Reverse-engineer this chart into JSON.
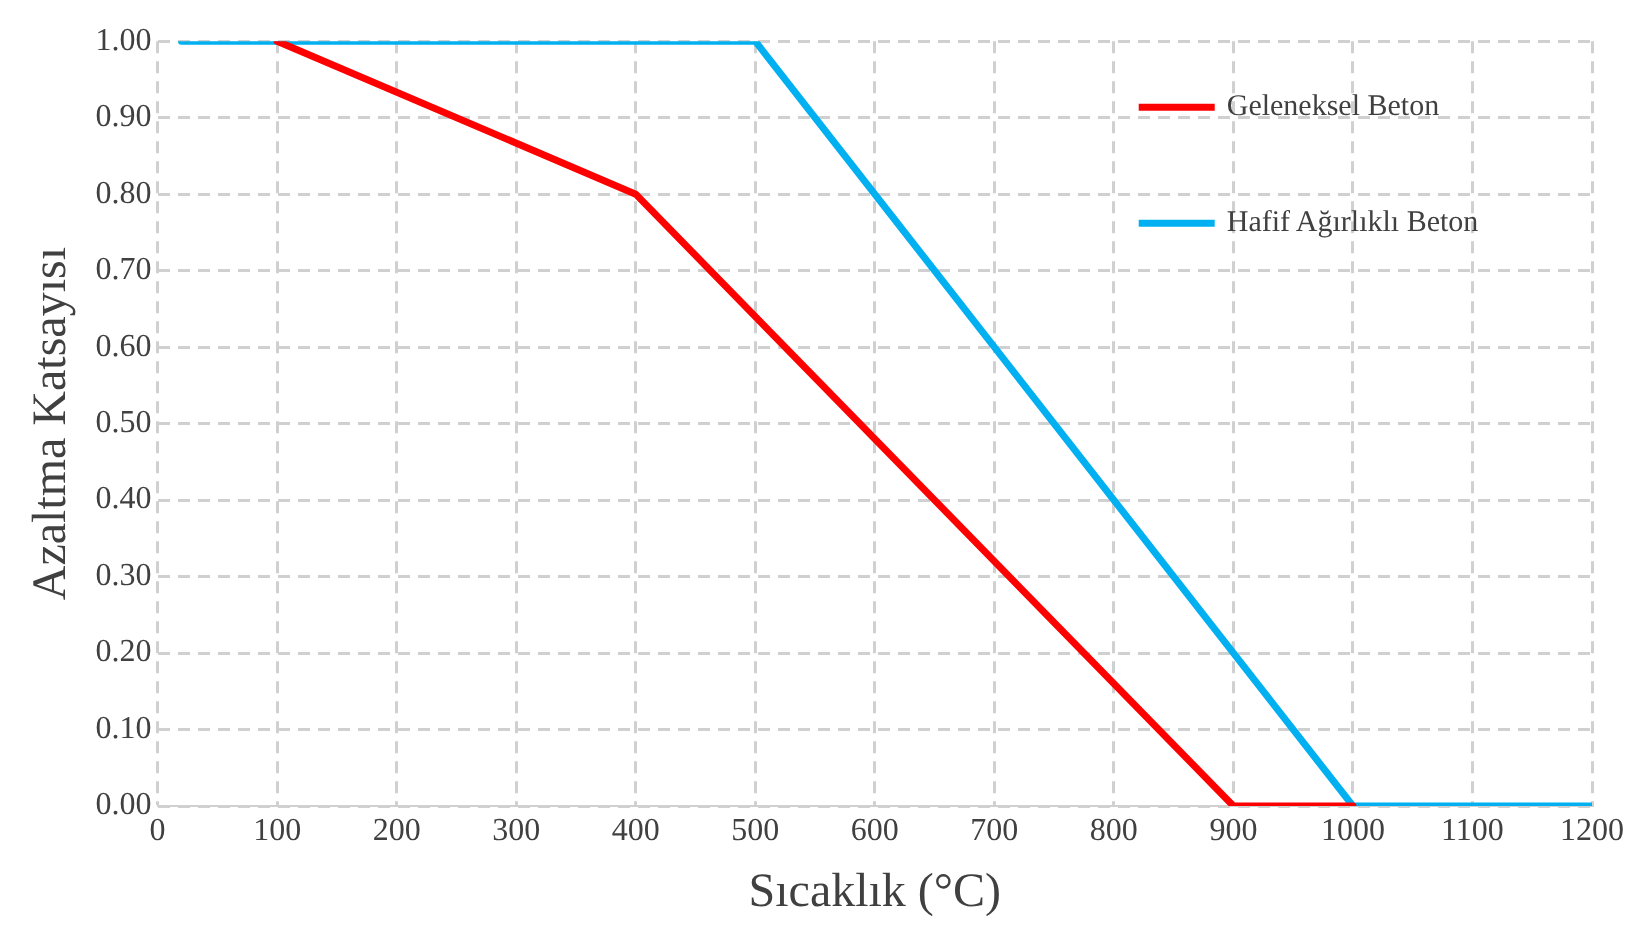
{
  "chart_data": {
    "type": "line",
    "xlabel": "Sıcaklık (°C)",
    "ylabel": "Azaltma Katsayısı",
    "xlim": [
      0,
      1200
    ],
    "xticks": [
      0,
      100,
      200,
      300,
      400,
      500,
      600,
      700,
      800,
      900,
      1000,
      1100,
      1200
    ],
    "ylim": [
      0,
      1
    ],
    "yticks": [
      {
        "value": 0,
        "label": "0.00"
      },
      {
        "value": 0.1,
        "label": "0.10"
      },
      {
        "value": 0.2,
        "label": "0.20"
      },
      {
        "value": 0.3,
        "label": "0.30"
      },
      {
        "value": 0.4,
        "label": "0.40"
      },
      {
        "value": 0.5,
        "label": "0.50"
      },
      {
        "value": 0.6,
        "label": "0.60"
      },
      {
        "value": 0.7,
        "label": "0.70"
      },
      {
        "value": 0.8,
        "label": "0.80"
      },
      {
        "value": 0.9,
        "label": "0.90"
      },
      {
        "value": 1,
        "label": "1.00"
      }
    ],
    "grid": true,
    "legend": "top right",
    "marker": "none",
    "line_style": "solid",
    "series": [
      {
        "name": "Geleneksel Beton",
        "color": "#ff0000",
        "x": [
          100,
          400,
          900,
          1000
        ],
        "values": [
          1,
          0.8,
          0,
          0
        ]
      },
      {
        "name": "Hafif Ağırlıklı Beton",
        "color": "#00b0f0",
        "x": [
          20,
          500,
          1000,
          1200
        ],
        "values": [
          1,
          1,
          0,
          0
        ]
      }
    ]
  }
}
